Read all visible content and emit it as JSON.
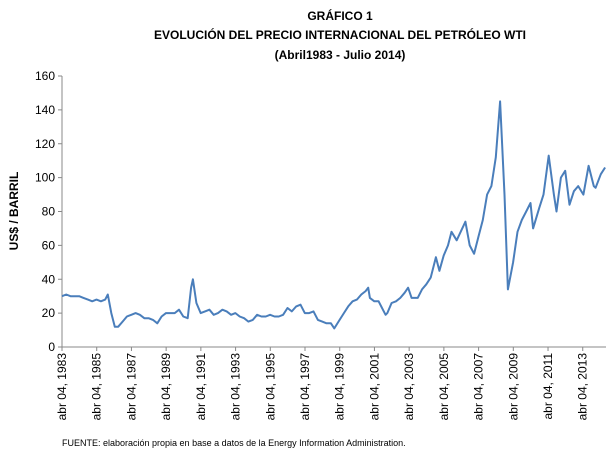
{
  "chart_data": {
    "type": "line",
    "title": "GRÁFICO 1",
    "subtitle": "EVOLUCIÓN DEL PRECIO INTERNACIONAL DEL PETRÓLEO WTI",
    "period": "(Abril1983 - Julio 2014)",
    "y_label": "US$ / BARRIL",
    "note": "FUENTE: elaboración propia en base a datos de la Energy Information Administration.",
    "color": "#4a7ebb",
    "x": [
      1983.26,
      1983.5,
      1983.75,
      1984,
      1984.25,
      1984.5,
      1984.75,
      1985,
      1985.25,
      1985.5,
      1985.75,
      1985.9,
      1986.1,
      1986.3,
      1986.5,
      1986.75,
      1987,
      1987.25,
      1987.5,
      1987.75,
      1988,
      1988.25,
      1988.5,
      1988.75,
      1989,
      1989.25,
      1989.5,
      1989.75,
      1990,
      1990.25,
      1990.5,
      1990.7,
      1990.8,
      1991,
      1991.25,
      1991.5,
      1991.75,
      1992,
      1992.25,
      1992.5,
      1992.75,
      1993,
      1993.25,
      1993.5,
      1993.75,
      1994,
      1994.25,
      1994.5,
      1994.75,
      1995,
      1995.25,
      1995.5,
      1995.75,
      1996,
      1996.25,
      1996.5,
      1996.75,
      1997,
      1997.25,
      1997.5,
      1997.75,
      1998,
      1998.25,
      1998.5,
      1998.75,
      1998.95,
      1999.25,
      1999.5,
      1999.75,
      2000,
      2000.25,
      2000.5,
      2000.75,
      2000.9,
      2001,
      2001.25,
      2001.5,
      2001.75,
      2001.9,
      2002,
      2002.25,
      2002.5,
      2002.75,
      2003,
      2003.2,
      2003.4,
      2003.75,
      2004,
      2004.25,
      2004.5,
      2004.8,
      2005,
      2005.25,
      2005.5,
      2005.7,
      2006,
      2006.5,
      2006.75,
      2007,
      2007.25,
      2007.5,
      2007.75,
      2008,
      2008.25,
      2008.5,
      2008.75,
      2008.95,
      2009.25,
      2009.5,
      2009.75,
      2010,
      2010.25,
      2010.4,
      2010.75,
      2011,
      2011.3,
      2011.6,
      2011.75,
      2012,
      2012.25,
      2012.5,
      2012.75,
      2013,
      2013.3,
      2013.6,
      2013.9,
      2014,
      2014.3,
      2014.55
    ],
    "values": [
      30,
      31,
      30,
      30,
      30,
      29,
      28,
      27,
      28,
      27,
      28,
      31,
      20,
      12,
      12,
      15,
      18,
      19,
      20,
      19,
      17,
      17,
      16,
      14,
      18,
      20,
      20,
      20,
      22,
      18,
      17,
      35,
      40,
      26,
      20,
      21,
      22,
      19,
      20,
      22,
      21,
      19,
      20,
      18,
      17,
      15,
      16,
      19,
      18,
      18,
      19,
      18,
      18,
      19,
      23,
      21,
      24,
      25,
      20,
      20,
      21,
      16,
      15,
      14,
      14,
      11,
      16,
      20,
      24,
      27,
      28,
      31,
      33,
      35,
      29,
      27,
      27,
      22,
      19,
      20,
      26,
      27,
      29,
      32,
      35,
      29,
      29,
      34,
      37,
      41,
      53,
      45,
      54,
      60,
      68,
      63,
      74,
      60,
      55,
      65,
      75,
      90,
      95,
      112,
      145,
      90,
      34,
      50,
      68,
      75,
      80,
      85,
      70,
      82,
      90,
      113,
      90,
      80,
      100,
      104,
      84,
      92,
      95,
      90,
      107,
      95,
      94,
      102,
      106
    ],
    "xlim": [
      1983.26,
      2014.6
    ],
    "xticks": [
      {
        "value": 1983.26,
        "label": "abr 04, 1983"
      },
      {
        "value": 1985.26,
        "label": "abr 04, 1985"
      },
      {
        "value": 1987.26,
        "label": "abr 04, 1987"
      },
      {
        "value": 1989.26,
        "label": "abr 04, 1989"
      },
      {
        "value": 1991.26,
        "label": "abr 04, 1991"
      },
      {
        "value": 1993.26,
        "label": "abr 04, 1993"
      },
      {
        "value": 1995.26,
        "label": "abr 04, 1995"
      },
      {
        "value": 1997.26,
        "label": "abr 04, 1997"
      },
      {
        "value": 1999.26,
        "label": "abr 04, 1999"
      },
      {
        "value": 2001.26,
        "label": "abr 04, 2001"
      },
      {
        "value": 2003.26,
        "label": "abr 04, 2003"
      },
      {
        "value": 2005.26,
        "label": "abr 04, 2005"
      },
      {
        "value": 2007.26,
        "label": "abr 04, 2007"
      },
      {
        "value": 2009.26,
        "label": "abr 04, 2009"
      },
      {
        "value": 2011.26,
        "label": "abr 04, 2011"
      },
      {
        "value": 2013.26,
        "label": "abr 04, 2013"
      }
    ],
    "ylim": [
      0,
      160
    ],
    "yticks": [
      0,
      20,
      40,
      60,
      80,
      100,
      120,
      140,
      160
    ]
  }
}
